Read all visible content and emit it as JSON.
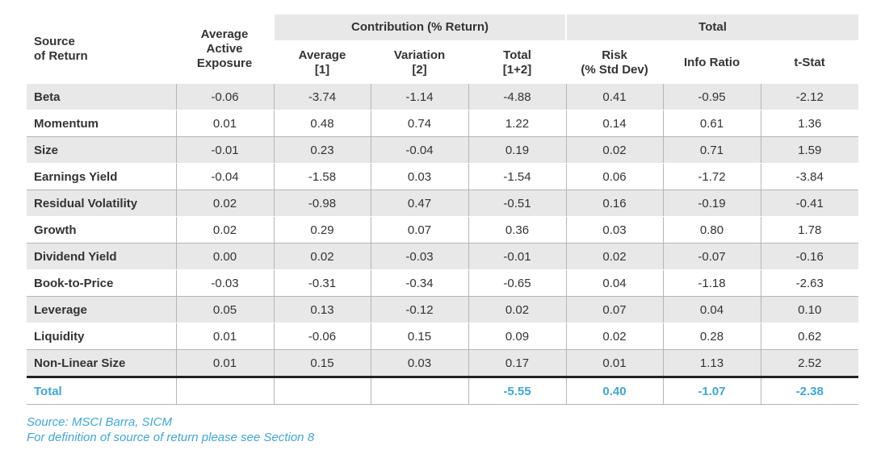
{
  "header": {
    "source": "Source\nof Return",
    "avg_active_exposure": "Average\nActive\nExposure",
    "group_contribution": "Contribution (% Return)",
    "group_total": "Total",
    "average": "Average\n[1]",
    "variation": "Variation\n[2]",
    "total_sum": "Total\n[1+2]",
    "risk": "Risk\n(% Std Dev)",
    "info_ratio": "Info Ratio",
    "t_stat": "t-Stat"
  },
  "rows": [
    {
      "name": "Beta",
      "exposure": "-0.06",
      "average": "-3.74",
      "variation": "-1.14",
      "total": "-4.88",
      "risk": "0.41",
      "info_ratio": "-0.95",
      "t_stat": "-2.12"
    },
    {
      "name": "Momentum",
      "exposure": "0.01",
      "average": "0.48",
      "variation": "0.74",
      "total": "1.22",
      "risk": "0.14",
      "info_ratio": "0.61",
      "t_stat": "1.36"
    },
    {
      "name": "Size",
      "exposure": "-0.01",
      "average": "0.23",
      "variation": "-0.04",
      "total": "0.19",
      "risk": "0.02",
      "info_ratio": "0.71",
      "t_stat": "1.59"
    },
    {
      "name": "Earnings Yield",
      "exposure": "-0.04",
      "average": "-1.58",
      "variation": "0.03",
      "total": "-1.54",
      "risk": "0.06",
      "info_ratio": "-1.72",
      "t_stat": "-3.84"
    },
    {
      "name": "Residual Volatility",
      "exposure": "0.02",
      "average": "-0.98",
      "variation": "0.47",
      "total": "-0.51",
      "risk": "0.16",
      "info_ratio": "-0.19",
      "t_stat": "-0.41"
    },
    {
      "name": "Growth",
      "exposure": "0.02",
      "average": "0.29",
      "variation": "0.07",
      "total": "0.36",
      "risk": "0.03",
      "info_ratio": "0.80",
      "t_stat": "1.78"
    },
    {
      "name": "Dividend Yield",
      "exposure": "0.00",
      "average": "0.02",
      "variation": "-0.03",
      "total": "-0.01",
      "risk": "0.02",
      "info_ratio": "-0.07",
      "t_stat": "-0.16"
    },
    {
      "name": "Book-to-Price",
      "exposure": "-0.03",
      "average": "-0.31",
      "variation": "-0.34",
      "total": "-0.65",
      "risk": "0.04",
      "info_ratio": "-1.18",
      "t_stat": "-2.63"
    },
    {
      "name": "Leverage",
      "exposure": "0.05",
      "average": "0.13",
      "variation": "-0.12",
      "total": "0.02",
      "risk": "0.07",
      "info_ratio": "0.04",
      "t_stat": "0.10"
    },
    {
      "name": "Liquidity",
      "exposure": "0.01",
      "average": "-0.06",
      "variation": "0.15",
      "total": "0.09",
      "risk": "0.02",
      "info_ratio": "0.28",
      "t_stat": "0.62"
    },
    {
      "name": "Non-Linear Size",
      "exposure": "0.01",
      "average": "0.15",
      "variation": "0.03",
      "total": "0.17",
      "risk": "0.01",
      "info_ratio": "1.13",
      "t_stat": "2.52"
    }
  ],
  "total_row": {
    "name": "Total",
    "exposure": "",
    "average": "",
    "variation": "",
    "total": "-5.55",
    "risk": "0.40",
    "info_ratio": "-1.07",
    "t_stat": "-2.38"
  },
  "notes": {
    "source": "Source: MSCI Barra, SICM",
    "definition": "For definition of source of return please see Section 8"
  },
  "colors": {
    "accent": "#3ea7d9",
    "shade": "#e8e8e8",
    "rule": "#222222"
  }
}
